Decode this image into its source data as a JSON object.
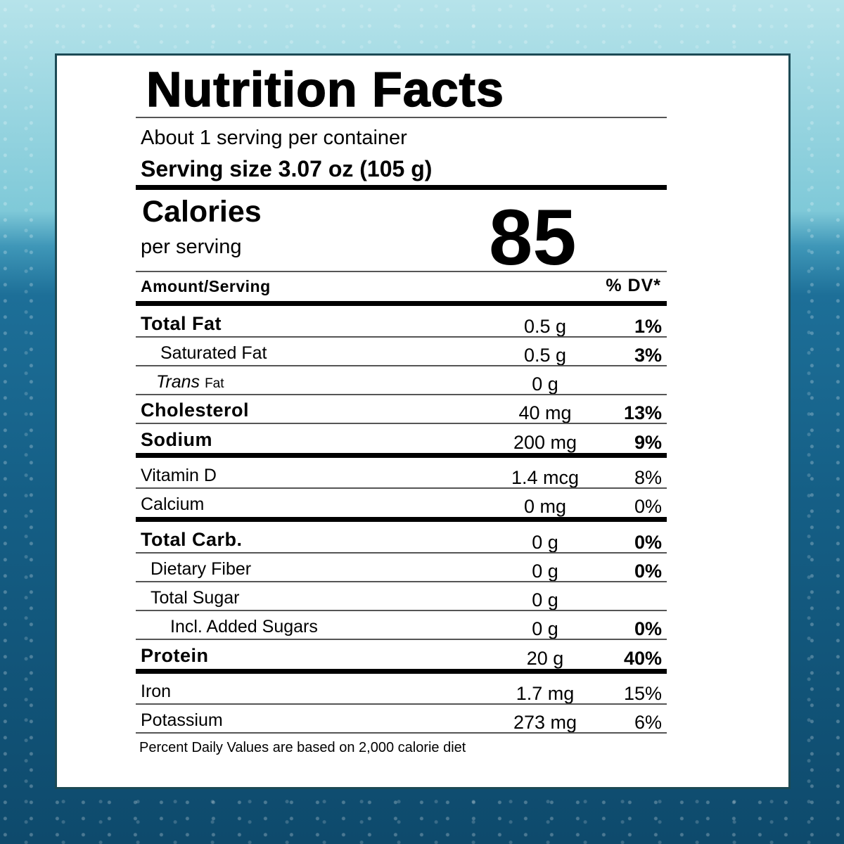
{
  "label": {
    "title": "Nutrition Facts",
    "servings": "About 1 serving per container",
    "serving_size": "Serving size 3.07 oz (105 g)",
    "calories_label": "Calories",
    "calories_sub": "per serving",
    "calories": 85,
    "amount_header": "Amount/Serving",
    "dv_header": "% DV*",
    "rows": [
      {
        "name": "Total Fat",
        "amount": "0.5 g",
        "dv": "1%"
      },
      {
        "name": "Saturated Fat",
        "amount": "0.5 g",
        "dv": "3%"
      },
      {
        "name": [
          "Trans",
          "Fat"
        ],
        "amount": "0 g"
      },
      {
        "name": "Cholesterol",
        "amount": "40 mg",
        "dv": "13%"
      },
      {
        "name": "Sodium",
        "amount": "200 mg",
        "dv": "9%"
      },
      {
        "name": "Vitamin D",
        "amount": "1.4 mcg",
        "dv": "8%"
      },
      {
        "name": "Calcium",
        "amount": "0 mg",
        "dv": "0%"
      },
      {
        "name": "Total Carb.",
        "amount": "0 g",
        "dv": "0%"
      },
      {
        "name": "Dietary Fiber",
        "amount": "0 g",
        "dv": "0%"
      },
      {
        "name": "Total Sugar",
        "amount": "0 g"
      },
      {
        "name": "Incl. Added Sugars",
        "amount": "0 g",
        "dv": "0%"
      },
      {
        "name": "Protein",
        "amount": "20 g",
        "dv": "40%"
      },
      {
        "name": "Iron",
        "amount": "1.7 mg",
        "dv": "15%"
      },
      {
        "name": "Potassium",
        "amount": "273 mg",
        "dv": "6%"
      }
    ],
    "footnote": "Percent Daily Values are based on 2,000 calorie diet"
  }
}
